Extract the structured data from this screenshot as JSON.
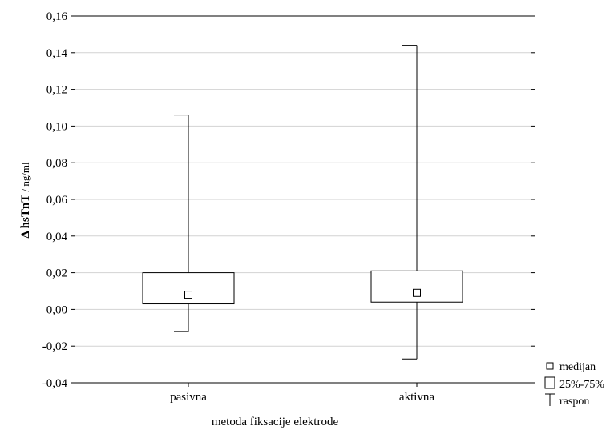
{
  "chart_data": {
    "type": "boxplot",
    "title": "",
    "xlabel": "metoda fiksacije elektrode",
    "ylabel_main": "Δ hsTnT",
    "ylabel_unit": " / ng/ml",
    "ylim": [
      -0.04,
      0.16
    ],
    "yticks": [
      -0.04,
      -0.02,
      0.0,
      0.02,
      0.04,
      0.06,
      0.08,
      0.1,
      0.12,
      0.14,
      0.16
    ],
    "ytick_labels": [
      "-0,04",
      "-0,02",
      "0,00",
      "0,02",
      "0,04",
      "0,06",
      "0,08",
      "0,10",
      "0,12",
      "0,14",
      "0,16"
    ],
    "grid": true,
    "categories": [
      "pasivna",
      "aktivna"
    ],
    "boxes": [
      {
        "category": "pasivna",
        "min": -0.012,
        "q1": 0.003,
        "median": 0.008,
        "q3": 0.02,
        "max": 0.106
      },
      {
        "category": "aktivna",
        "min": -0.027,
        "q1": 0.004,
        "median": 0.009,
        "q3": 0.021,
        "max": 0.144
      }
    ],
    "legend": {
      "placement": "bottom-right",
      "items": [
        {
          "symbol": "median-square",
          "label": "medijan"
        },
        {
          "symbol": "box",
          "label": "25%-75%"
        },
        {
          "symbol": "whisker",
          "label": "raspon"
        }
      ]
    }
  }
}
